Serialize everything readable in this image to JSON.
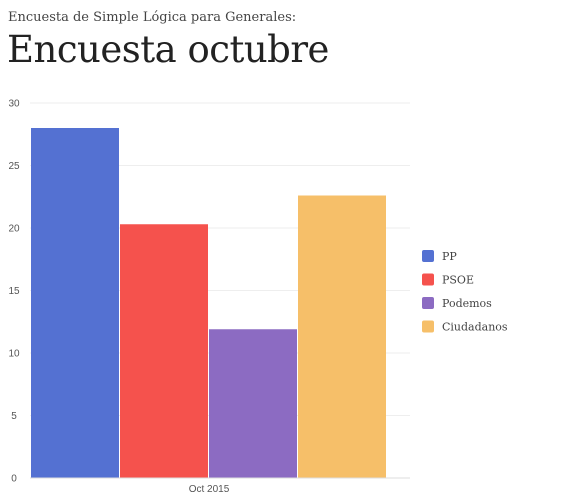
{
  "subtitle": "Encuesta de Simple Lógica para Generales:",
  "title": "Encuesta octubre",
  "chart_data": {
    "type": "bar",
    "categories": [
      "Oct 2015"
    ],
    "series": [
      {
        "name": "PP",
        "values": [
          28
        ],
        "color": "#5471d2"
      },
      {
        "name": "PSOE",
        "values": [
          20.3
        ],
        "color": "#f5524d"
      },
      {
        "name": "Podemos",
        "values": [
          11.9
        ],
        "color": "#8c6bc2"
      },
      {
        "name": "Ciudadanos",
        "values": [
          22.6
        ],
        "color": "#f6bf69"
      }
    ],
    "ylim": [
      0,
      30
    ],
    "yticks": [
      0,
      5,
      10,
      15,
      20,
      25,
      30
    ],
    "grid": true,
    "legend": "right"
  }
}
